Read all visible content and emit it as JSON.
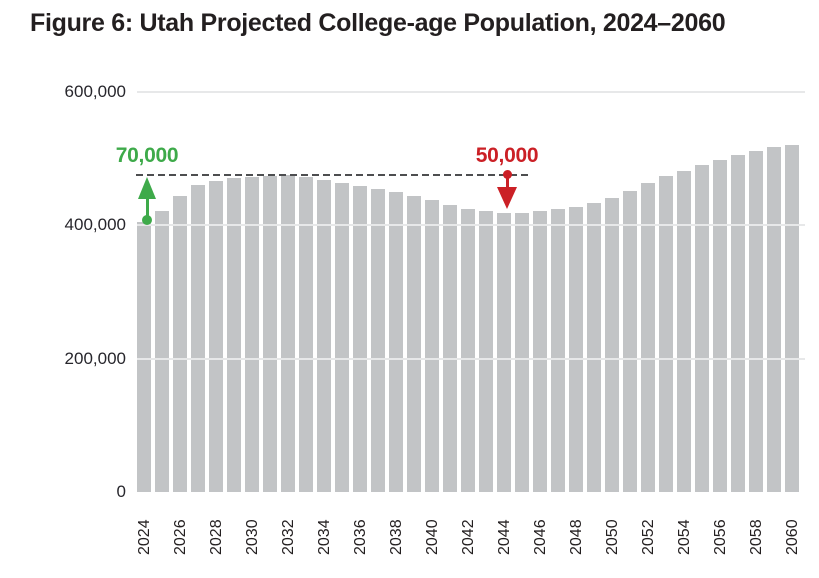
{
  "figure": {
    "title": "Figure 6: Utah Projected College-age Population, 2024–2060"
  },
  "colors": {
    "background": "#ffffff",
    "title_text": "#231f20",
    "axis_text": "#27262c",
    "bar": "#c2c4c6",
    "gridline": "#e7e8e9",
    "reference_line": "#4d4e50",
    "green": "#3eaa4a",
    "red": "#cb2026"
  },
  "chart_data": {
    "type": "bar",
    "title": "Figure 6: Utah Projected College-age Population, 2024–2060",
    "xlabel": "",
    "ylabel": "",
    "x": [
      2024,
      2025,
      2026,
      2027,
      2028,
      2029,
      2030,
      2031,
      2032,
      2033,
      2034,
      2035,
      2036,
      2037,
      2038,
      2039,
      2040,
      2041,
      2042,
      2043,
      2044,
      2045,
      2046,
      2047,
      2048,
      2049,
      2050,
      2051,
      2052,
      2053,
      2054,
      2055,
      2056,
      2057,
      2058,
      2059,
      2060
    ],
    "values": [
      405000,
      421000,
      444000,
      460000,
      467000,
      471000,
      473000,
      474000,
      475000,
      472000,
      468000,
      464000,
      459000,
      455000,
      450000,
      444000,
      438000,
      431000,
      425000,
      421000,
      419000,
      419000,
      421000,
      424000,
      428000,
      434000,
      441000,
      452000,
      464000,
      474000,
      481000,
      491000,
      498000,
      505000,
      511000,
      517000,
      521000
    ],
    "ylim": [
      0,
      600000
    ],
    "yticks": [
      0,
      200000,
      400000,
      600000
    ],
    "ytick_labels": [
      "0",
      "200,000",
      "400,000",
      "600,000"
    ],
    "xtick_labels": [
      "2024",
      "2026",
      "2028",
      "2030",
      "2032",
      "2034",
      "2036",
      "2038",
      "2040",
      "2042",
      "2044",
      "2046",
      "2048",
      "2050",
      "2052",
      "2054",
      "2056",
      "2058",
      "2060"
    ],
    "grid": "horizontal-above-bars",
    "legend": "none",
    "annotations": [
      {
        "id": "reference-line",
        "type": "dashed-line",
        "value": 475000,
        "from_year": 2024,
        "to_year": 2045,
        "color": "#4d4e50"
      },
      {
        "id": "growth",
        "type": "arrow-up",
        "label": "70,000",
        "color": "#3eaa4a",
        "at_year": 2024,
        "from_value": 405000,
        "to_value": 475000
      },
      {
        "id": "decline",
        "type": "arrow-down",
        "label": "50,000",
        "color": "#cb2026",
        "at_year": 2044,
        "from_value": 475000,
        "to_value": 425000
      }
    ]
  }
}
